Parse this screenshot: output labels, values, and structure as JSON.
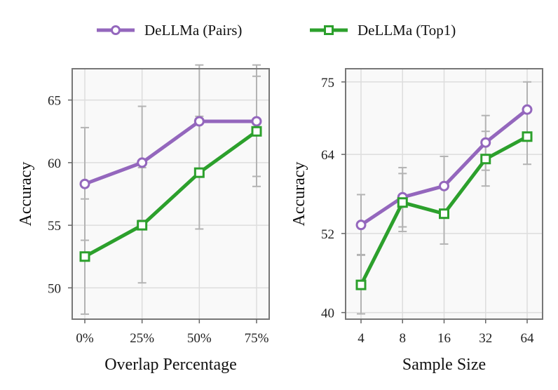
{
  "legend": {
    "items": [
      {
        "name": "DeLLMa (Pairs)",
        "color": "#9467bd",
        "marker": "circle"
      },
      {
        "name": "DeLLMa (Top1)",
        "color": "#2ca02c",
        "marker": "square"
      }
    ]
  },
  "chart_data": [
    {
      "type": "line",
      "title": "",
      "xlabel": "Overlap Percentage",
      "ylabel": "Accuracy",
      "categories": [
        "0%",
        "25%",
        "50%",
        "75%"
      ],
      "ylim": [
        47.5,
        67.5
      ],
      "yticks": [
        50,
        55,
        60,
        65
      ],
      "ytick_labels": [
        "50",
        "55",
        "60",
        "65"
      ],
      "grid": true,
      "series": [
        {
          "name": "DeLLMa (Pairs)",
          "color": "#9467bd",
          "marker": "circle",
          "values": [
            58.3,
            60.0,
            63.3,
            63.3
          ],
          "err_low": [
            53.8,
            55.4,
            58.9,
            58.9
          ],
          "err_high": [
            62.8,
            64.5,
            67.8,
            67.8
          ]
        },
        {
          "name": "DeLLMa (Top1)",
          "color": "#2ca02c",
          "marker": "square",
          "values": [
            52.5,
            55.0,
            59.2,
            62.5
          ],
          "err_low": [
            47.9,
            50.4,
            54.7,
            58.1
          ],
          "err_high": [
            57.1,
            59.6,
            63.7,
            66.9
          ]
        }
      ]
    },
    {
      "type": "line",
      "title": "",
      "xlabel": "Sample Size",
      "ylabel": "Accuracy",
      "categories": [
        "4",
        "8",
        "16",
        "32",
        "64"
      ],
      "ylim": [
        39.0,
        77.0
      ],
      "yticks": [
        40,
        52,
        64,
        75
      ],
      "ytick_labels": [
        "40",
        "52",
        "64",
        "75"
      ],
      "grid": true,
      "series": [
        {
          "name": "DeLLMa (Pairs)",
          "color": "#9467bd",
          "marker": "circle",
          "values": [
            53.3,
            57.5,
            59.2,
            65.8,
            70.8
          ],
          "err_low": [
            48.8,
            53.0,
            54.7,
            61.6,
            66.7
          ],
          "err_high": [
            57.9,
            62.0,
            63.7,
            69.9,
            75.0
          ]
        },
        {
          "name": "DeLLMa (Top1)",
          "color": "#2ca02c",
          "marker": "square",
          "values": [
            44.2,
            56.7,
            55.0,
            63.3,
            66.7
          ],
          "err_low": [
            39.8,
            52.3,
            50.4,
            59.2,
            62.5
          ],
          "err_high": [
            48.7,
            61.1,
            59.6,
            67.5,
            70.9
          ]
        }
      ]
    }
  ]
}
